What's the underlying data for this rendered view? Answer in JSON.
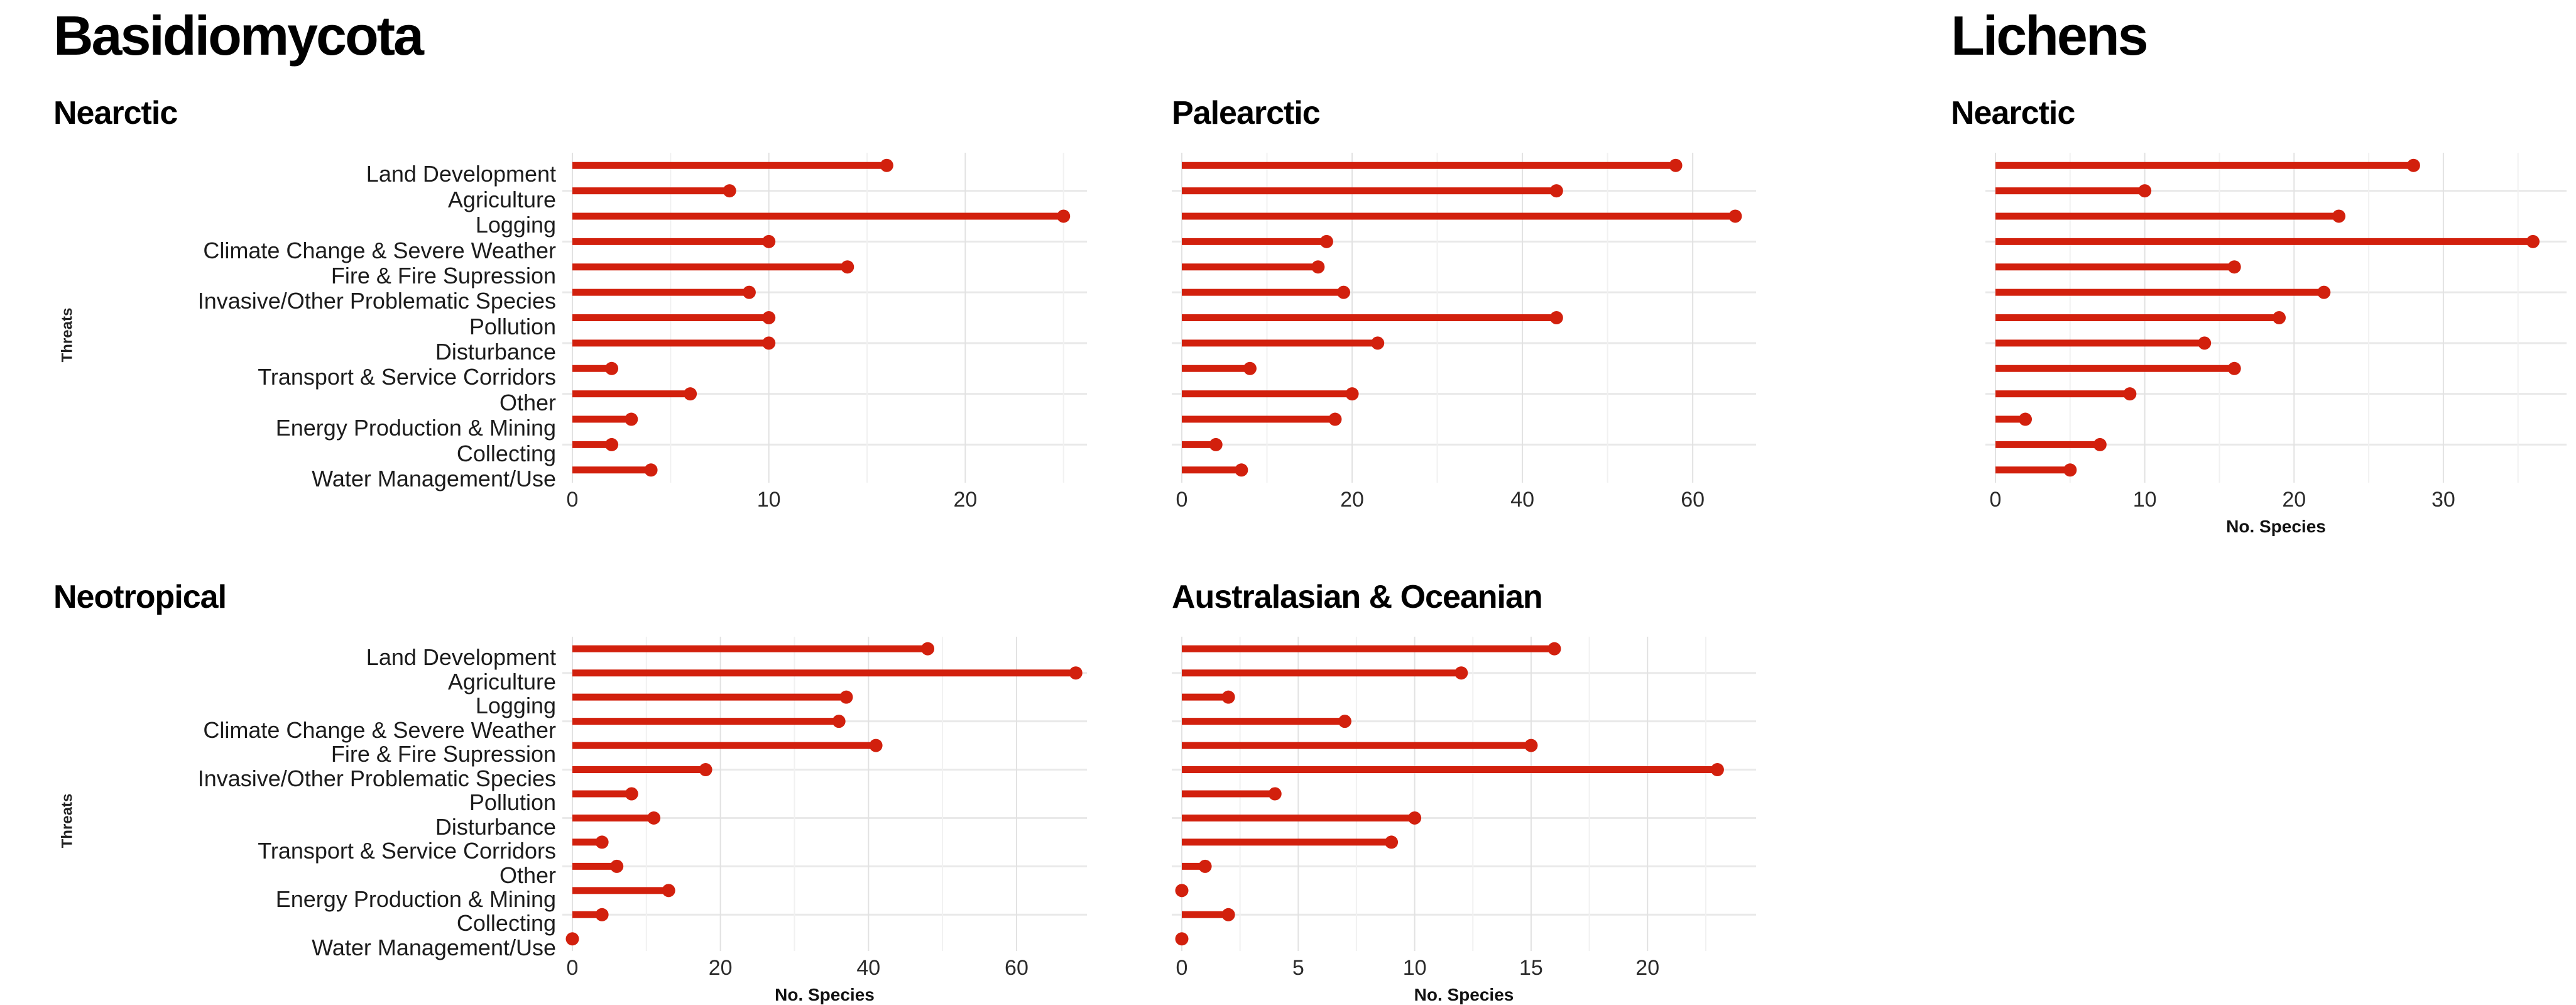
{
  "page": {
    "group_title_left": "Basidiomycota",
    "group_title_right": "Lichens"
  },
  "colors": {
    "bar_red": "#d2200d",
    "grid_major": "#e2e2e2",
    "grid_minor": "#f1f1f1",
    "row_grid": "#e9e9e9"
  },
  "categories": [
    "Land Development",
    "Agriculture",
    "Logging",
    "Climate Change & Severe Weather",
    "Fire & Fire Supression",
    "Invasive/Other Problematic Species",
    "Pollution",
    "Disturbance",
    "Transport & Service Corridors",
    "Other",
    "Energy Production & Mining",
    "Collecting",
    "Water Management/Use"
  ],
  "chart_data": [
    {
      "type": "bar",
      "orientation": "horizontal-lollipop",
      "group": "Basidiomycota",
      "subtitle": "Nearctic",
      "ylabel": "Threats",
      "xlabel": "",
      "ticks": [
        0,
        10,
        20
      ],
      "xlim": [
        0,
        26
      ],
      "grid": true,
      "categories_ref": "categories",
      "values": [
        16,
        8,
        25,
        10,
        14,
        9,
        10,
        10,
        2,
        6,
        3,
        2,
        4
      ]
    },
    {
      "type": "bar",
      "orientation": "horizontal-lollipop",
      "group": "Basidiomycota",
      "subtitle": "Palearctic",
      "ylabel": "",
      "xlabel": "",
      "ticks": [
        0,
        20,
        40,
        60
      ],
      "xlim": [
        0,
        67
      ],
      "grid": true,
      "categories_ref": "categories",
      "values": [
        58,
        44,
        65,
        17,
        16,
        19,
        44,
        23,
        8,
        20,
        18,
        4,
        7
      ]
    },
    {
      "type": "bar",
      "orientation": "horizontal-lollipop",
      "group": "Lichens",
      "subtitle": "Nearctic",
      "ylabel": "",
      "xlabel": "No. Species",
      "ticks": [
        0,
        10,
        20,
        30
      ],
      "xlim": [
        0,
        38
      ],
      "grid": true,
      "categories_ref": "categories",
      "values": [
        28,
        10,
        23,
        36,
        16,
        22,
        19,
        14,
        16,
        9,
        2,
        7,
        5
      ]
    },
    {
      "type": "bar",
      "orientation": "horizontal-lollipop",
      "group": "Basidiomycota",
      "subtitle": "Neotropical",
      "ylabel": "Threats",
      "xlabel": "No. Species",
      "ticks": [
        0,
        20,
        40,
        60
      ],
      "xlim": [
        0,
        69
      ],
      "grid": true,
      "categories_ref": "categories",
      "values": [
        48,
        68,
        37,
        36,
        41,
        18,
        8,
        11,
        4,
        6,
        13,
        4,
        0
      ]
    },
    {
      "type": "bar",
      "orientation": "horizontal-lollipop",
      "group": "Basidiomycota",
      "subtitle": "Australasian & Oceanian",
      "ylabel": "",
      "xlabel": "No. Species",
      "ticks": [
        0,
        5,
        10,
        15,
        20
      ],
      "xlim": [
        0,
        24.5
      ],
      "grid": true,
      "categories_ref": "categories",
      "values": [
        16,
        12,
        2,
        7,
        15,
        23,
        4,
        10,
        9,
        1,
        0,
        2,
        0
      ]
    }
  ]
}
